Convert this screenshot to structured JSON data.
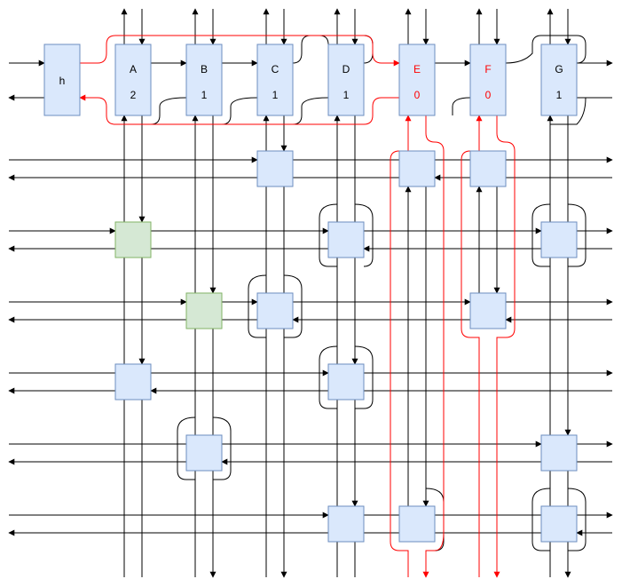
{
  "header_nodes": [
    {
      "id": "h",
      "letter": "h",
      "value": "",
      "highlight": false
    },
    {
      "id": "A",
      "letter": "A",
      "value": "2",
      "highlight": false
    },
    {
      "id": "B",
      "letter": "B",
      "value": "1",
      "highlight": false
    },
    {
      "id": "C",
      "letter": "C",
      "value": "1",
      "highlight": false
    },
    {
      "id": "D",
      "letter": "D",
      "value": "1",
      "highlight": false
    },
    {
      "id": "E",
      "letter": "E",
      "value": "0",
      "highlight": true
    },
    {
      "id": "F",
      "letter": "F",
      "value": "0",
      "highlight": true
    },
    {
      "id": "G",
      "letter": "G",
      "value": "1",
      "highlight": false
    }
  ],
  "colors": {
    "node_fill": "#dae8fc",
    "node_stroke": "#6c8ebf",
    "green_fill": "#d5e8d4",
    "green_stroke": "#82b366",
    "line": "#000000",
    "highlight": "#ff0000"
  }
}
